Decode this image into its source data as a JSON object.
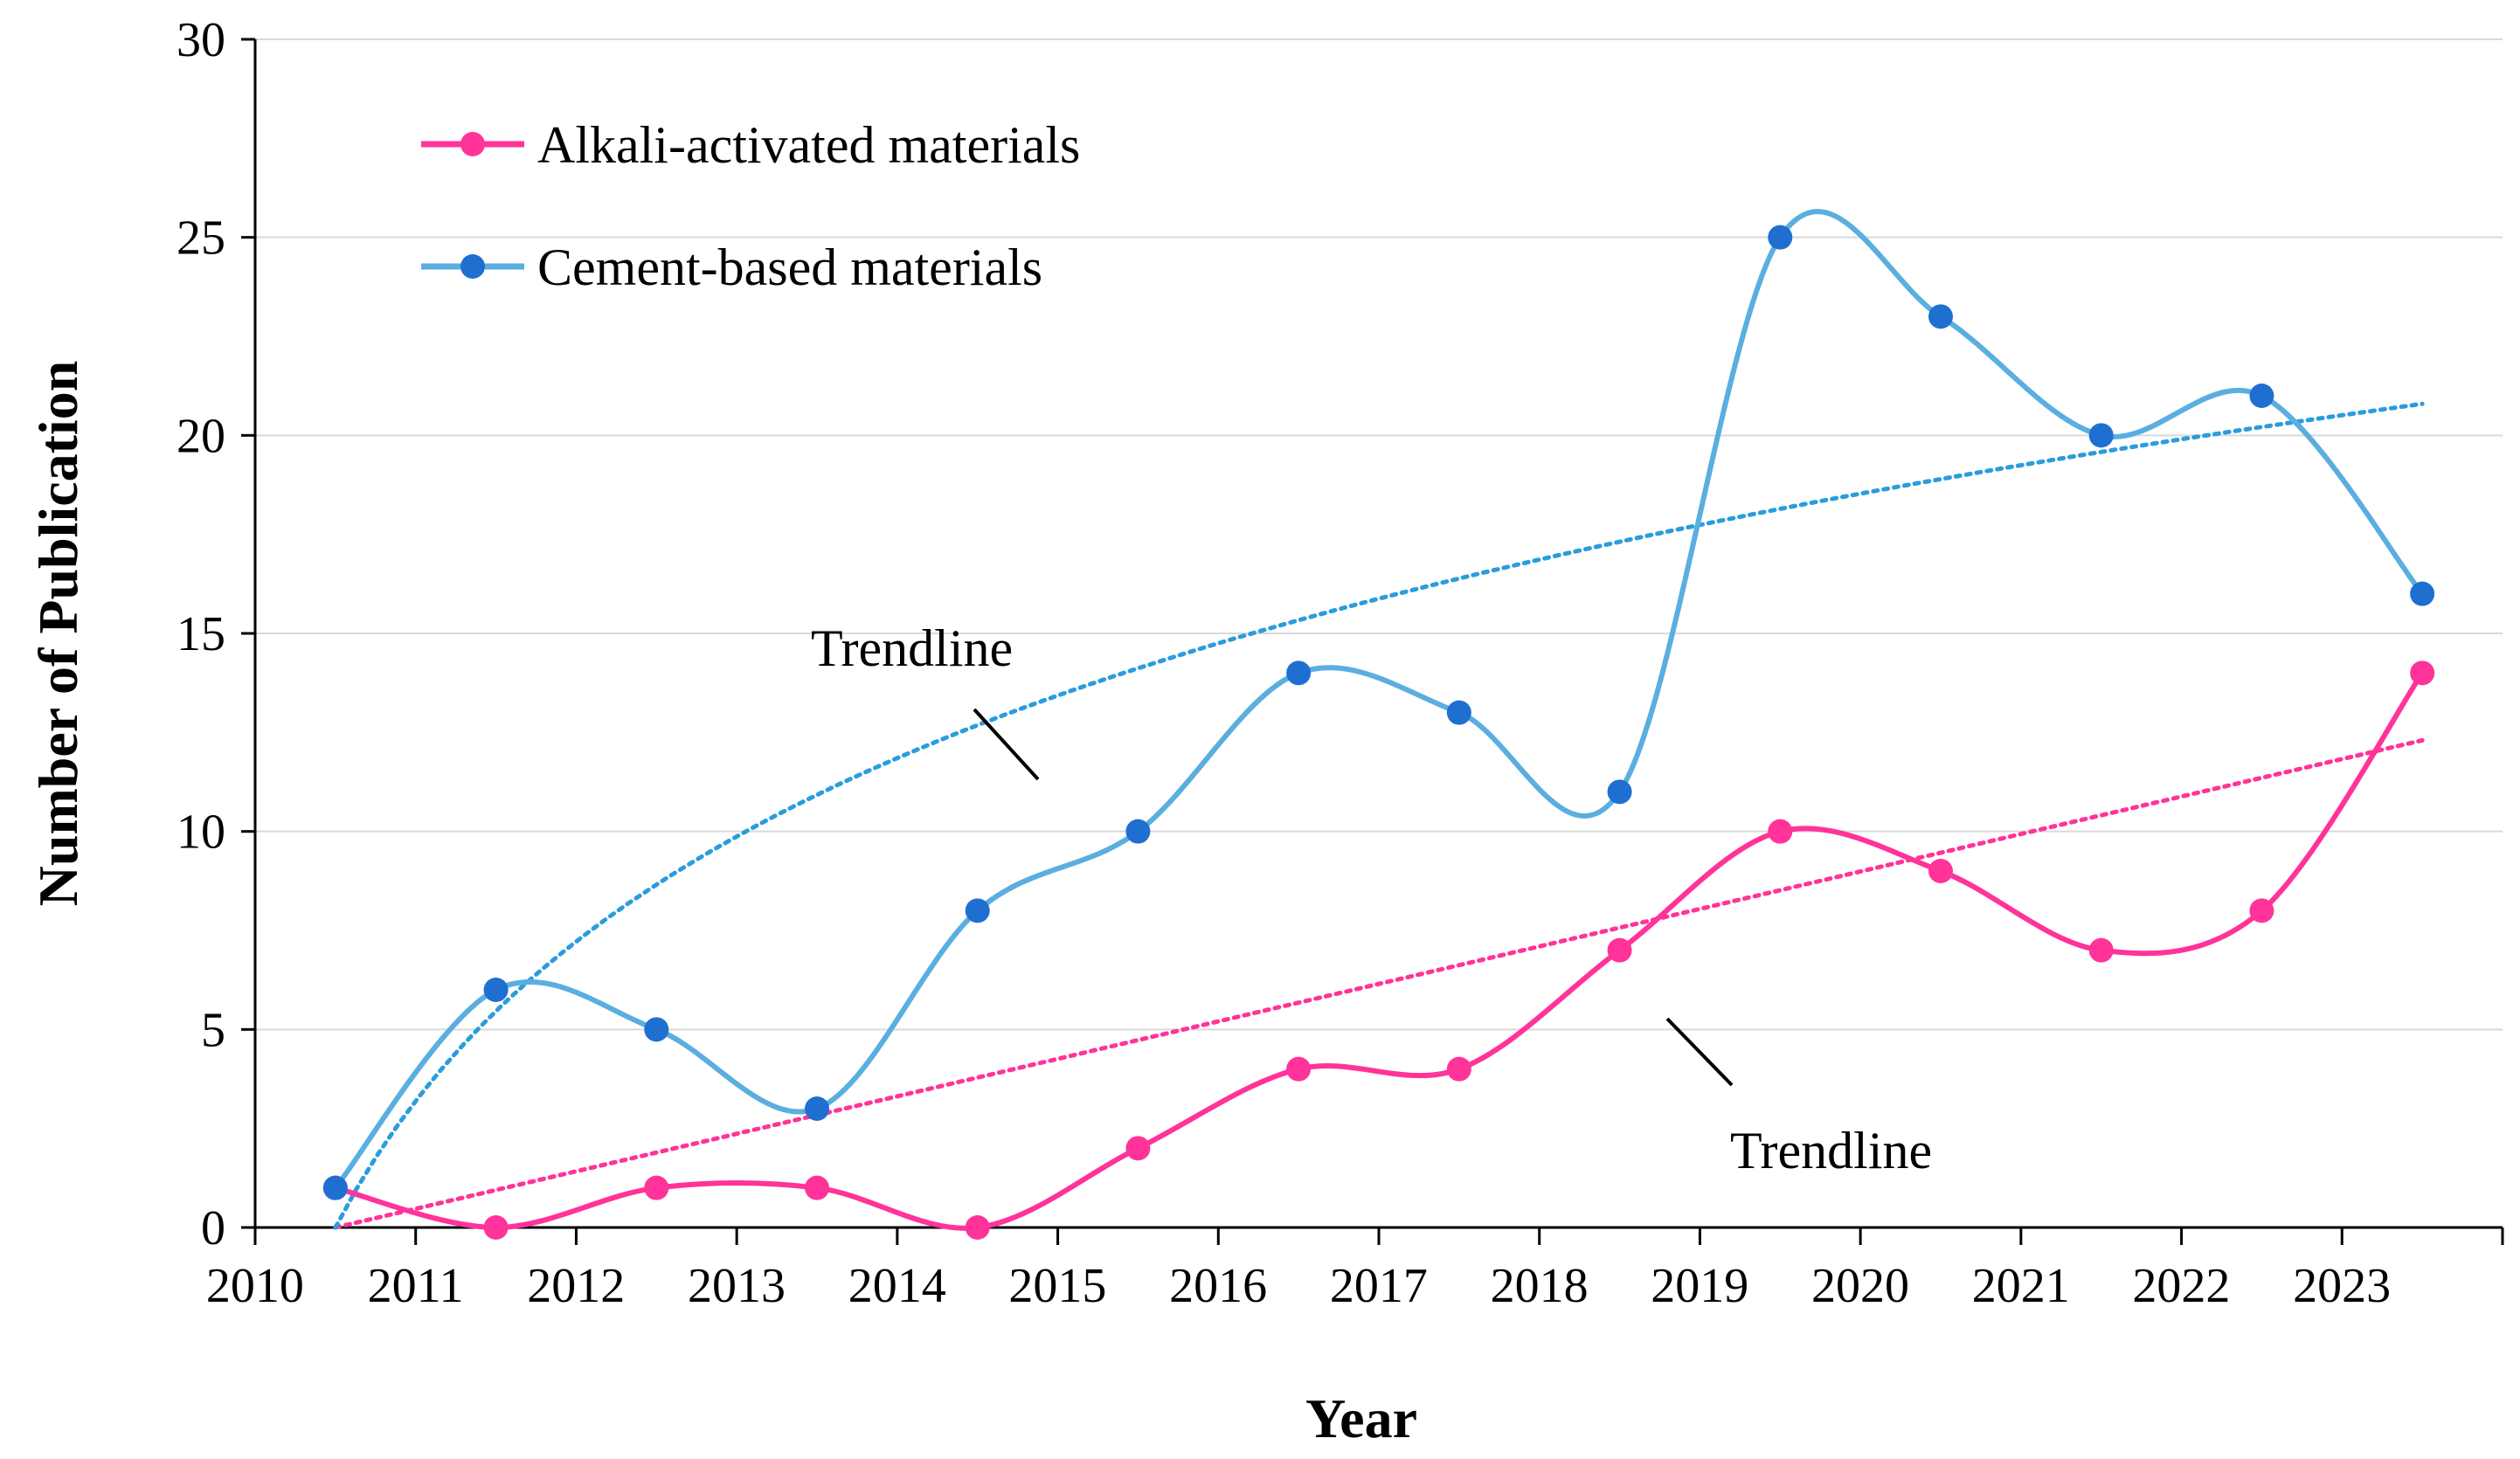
{
  "chart_data": {
    "type": "line",
    "title": "",
    "xlabel": "Year",
    "ylabel": "Number of Publication",
    "categories": [
      "2010",
      "2011",
      "2012",
      "2013",
      "2014",
      "2015",
      "2016",
      "2017",
      "2018",
      "2019",
      "2020",
      "2021",
      "2022",
      "2023"
    ],
    "yticks": [
      "0",
      "5",
      "10",
      "15",
      "20",
      "25",
      "30"
    ],
    "ylim": [
      0,
      30
    ],
    "grid": "horizontal",
    "legend_position": "top-left",
    "series": [
      {
        "name": "Alkali-activated materials",
        "color": "#ff3399",
        "values": [
          1,
          0,
          1,
          1,
          0,
          2,
          4,
          4,
          7,
          10,
          9,
          7,
          8,
          14
        ],
        "trendline": {
          "type": "linear",
          "values": [
            0,
            12.3
          ]
        }
      },
      {
        "name": "Cement-based materials",
        "color": "#1f6fd1",
        "line_color": "#5aaee0",
        "values": [
          1,
          6,
          5,
          3,
          8,
          10,
          14,
          13,
          11,
          25,
          23,
          20,
          21,
          16
        ],
        "trendline": {
          "type": "logarithmic",
          "a": 0.0,
          "b": 7.88,
          "color": "#2a9ddc"
        }
      }
    ],
    "annotations": [
      {
        "text": "Trendline",
        "target": "Cement-based materials"
      },
      {
        "text": "Trendline",
        "target": "Alkali-activated materials"
      }
    ]
  }
}
